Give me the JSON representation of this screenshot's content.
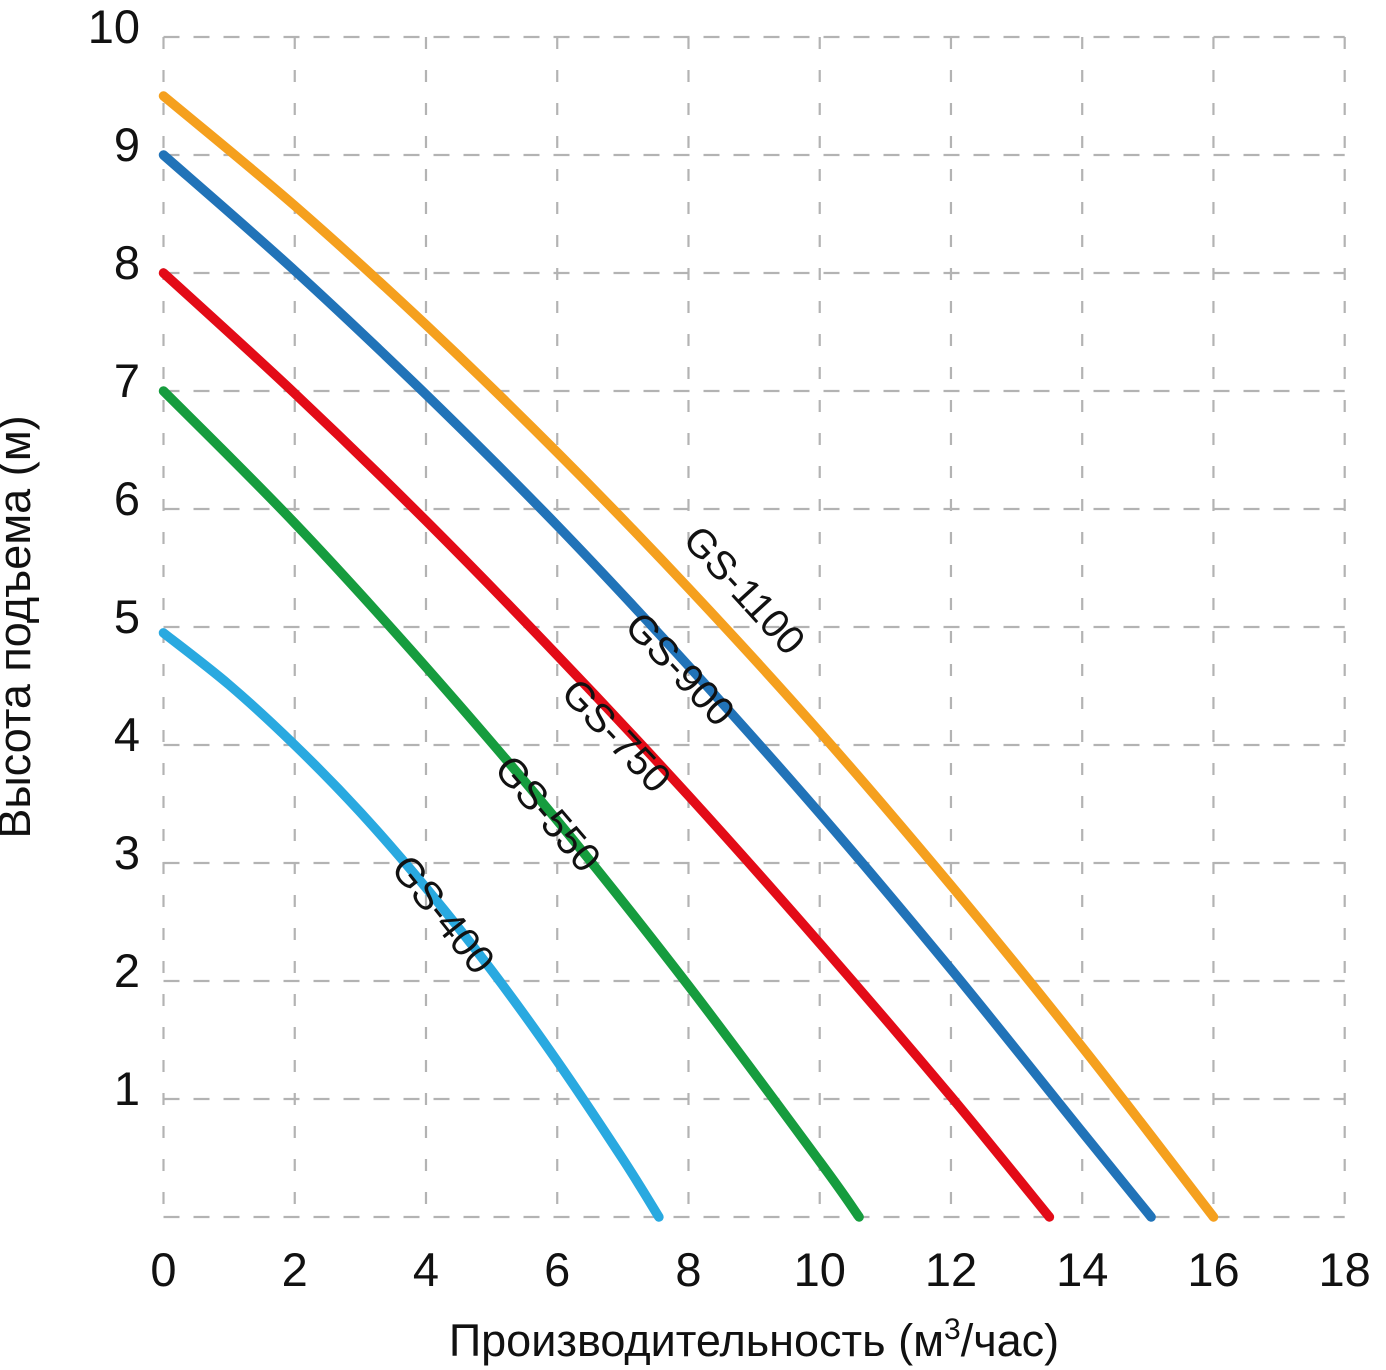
{
  "chart_data": {
    "type": "line",
    "title": "",
    "xlabel_parts": {
      "prefix": "Производительность (м",
      "sup": "3",
      "suffix": "/час)"
    },
    "ylabel": "Высота подъема (м)",
    "xlim": [
      0,
      18
    ],
    "ylim": [
      0,
      10
    ],
    "xticks": [
      0,
      2,
      4,
      6,
      8,
      10,
      12,
      14,
      16,
      18
    ],
    "yticks": [
      1,
      2,
      3,
      4,
      5,
      6,
      7,
      8,
      9,
      10
    ],
    "grid": {
      "style": "dashed",
      "color": "#b3b3b3",
      "x_gridlines": [
        0,
        2,
        4,
        6,
        8,
        10,
        12,
        14,
        16,
        18
      ],
      "y_gridlines": [
        0,
        1,
        2,
        3,
        4,
        5,
        6,
        7,
        8,
        9,
        10
      ]
    },
    "legend_position": "inline-curve-labels",
    "text_color": "#111111",
    "series": [
      {
        "name": "GS-400",
        "color": "#29A9E0",
        "max_head_m": 4.95,
        "max_flow_m3h": 7.55,
        "points": [
          [
            0,
            4.95
          ],
          [
            1,
            4.51
          ],
          [
            2,
            4.0
          ],
          [
            3,
            3.43
          ],
          [
            4,
            2.79
          ],
          [
            5,
            2.09
          ],
          [
            6,
            1.32
          ],
          [
            7,
            0.49
          ],
          [
            7.55,
            0
          ]
        ],
        "label_q": 4.1,
        "label_dy": 27
      },
      {
        "name": "GS-550",
        "color": "#169C3E",
        "max_head_m": 7.0,
        "max_flow_m3h": 10.6,
        "points": [
          [
            0,
            7.0
          ],
          [
            2,
            5.88
          ],
          [
            4,
            4.66
          ],
          [
            6,
            3.36
          ],
          [
            8,
            1.96
          ],
          [
            10,
            0.47
          ],
          [
            10.6,
            0
          ]
        ],
        "label_q": 5.7,
        "label_dy": 25
      },
      {
        "name": "GS-750",
        "color": "#E30B17",
        "max_head_m": 8.0,
        "max_flow_m3h": 13.5,
        "points": [
          [
            0,
            8.0
          ],
          [
            2,
            6.98
          ],
          [
            4,
            5.9
          ],
          [
            6,
            4.76
          ],
          [
            8,
            3.57
          ],
          [
            10,
            2.32
          ],
          [
            12,
            1.02
          ],
          [
            13.5,
            0
          ]
        ],
        "label_q": 6.75,
        "label_dy": 37
      },
      {
        "name": "GS-900",
        "color": "#2173B8",
        "max_head_m": 9.0,
        "max_flow_m3h": 15.05,
        "points": [
          [
            0,
            9.0
          ],
          [
            2,
            8.02
          ],
          [
            4,
            6.97
          ],
          [
            6,
            5.86
          ],
          [
            8,
            4.67
          ],
          [
            10,
            3.42
          ],
          [
            12,
            2.1
          ],
          [
            14,
            0.72
          ],
          [
            15.05,
            0
          ]
        ],
        "label_q": 7.72,
        "label_dy": 32
      },
      {
        "name": "GS-1100",
        "color": "#F5A01E",
        "max_head_m": 9.5,
        "max_flow_m3h": 16.0,
        "points": [
          [
            0,
            9.5
          ],
          [
            2,
            8.57
          ],
          [
            4,
            7.56
          ],
          [
            6,
            6.48
          ],
          [
            8,
            5.33
          ],
          [
            10,
            4.11
          ],
          [
            12,
            2.81
          ],
          [
            14,
            1.44
          ],
          [
            16,
            0
          ]
        ],
        "label_q": 8.7,
        "label_dy": -39
      }
    ]
  }
}
